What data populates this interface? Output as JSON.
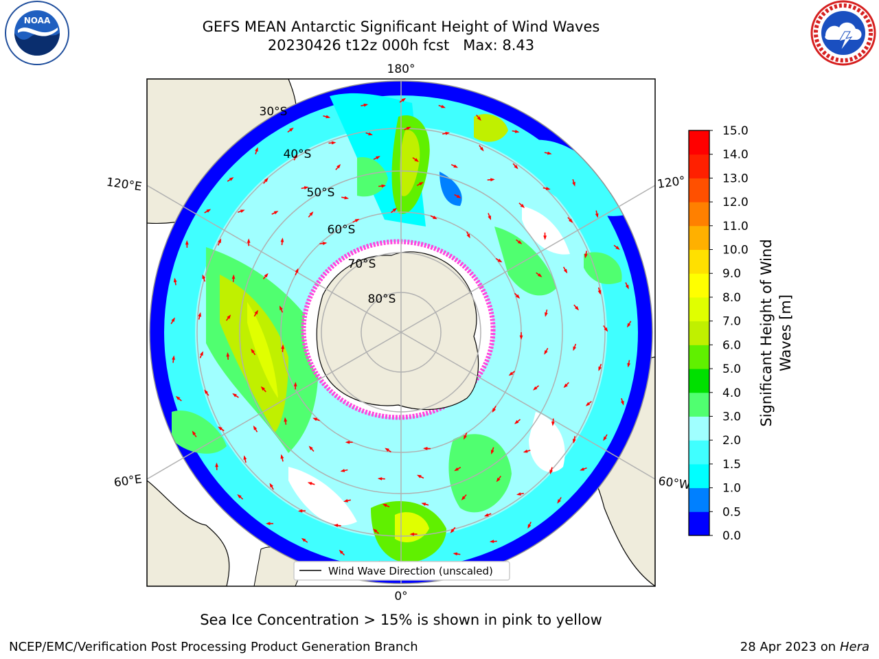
{
  "header": {
    "title_line1": "GEFS MEAN Antarctic Significant Height of Wind Waves",
    "title_line2": "20230426 t12z 000h fcst   Max: 8.43"
  },
  "logos": {
    "left": "noaa-logo",
    "right": "national-weather-service-logo"
  },
  "map": {
    "projection": "south-polar-stereographic",
    "longitude_labels": [
      "180°",
      "120°E",
      "120°",
      "60°E",
      "60°W",
      "0°"
    ],
    "latitude_labels": [
      "30°S",
      "40°S",
      "50°S",
      "60°S",
      "70°S",
      "80°S"
    ],
    "legend_label": "Wind Wave Direction (unscaled)",
    "land_color": "#efecdc",
    "sea_ice_color": "#ff44dd",
    "arrow_color": "#ff0000"
  },
  "colorbar": {
    "label_line1": "Significant Height of Wind",
    "label_line2": "Waves [m]",
    "ticks": [
      "0.0",
      "0.5",
      "1.0",
      "1.5",
      "2.0",
      "3.0",
      "4.0",
      "5.0",
      "6.0",
      "7.0",
      "8.0",
      "9.0",
      "10.0",
      "11.0",
      "12.0",
      "13.0",
      "14.0",
      "15.0"
    ],
    "colors": [
      "#0000ff",
      "#0080ff",
      "#00ffff",
      "#40ffff",
      "#a0ffff",
      "#50ff70",
      "#00e000",
      "#60f000",
      "#c0f000",
      "#e0ff00",
      "#ffff00",
      "#ffe000",
      "#ffb000",
      "#ff8000",
      "#ff5000",
      "#ff2000",
      "#ff0000"
    ]
  },
  "subtitle": "Sea Ice Concentration > 15% is shown in pink to yellow",
  "footer": {
    "left": "NCEP/EMC/Verification Post Processing Product Generation Branch",
    "right_date": "28 Apr 2023 on ",
    "right_system": "Hera"
  }
}
